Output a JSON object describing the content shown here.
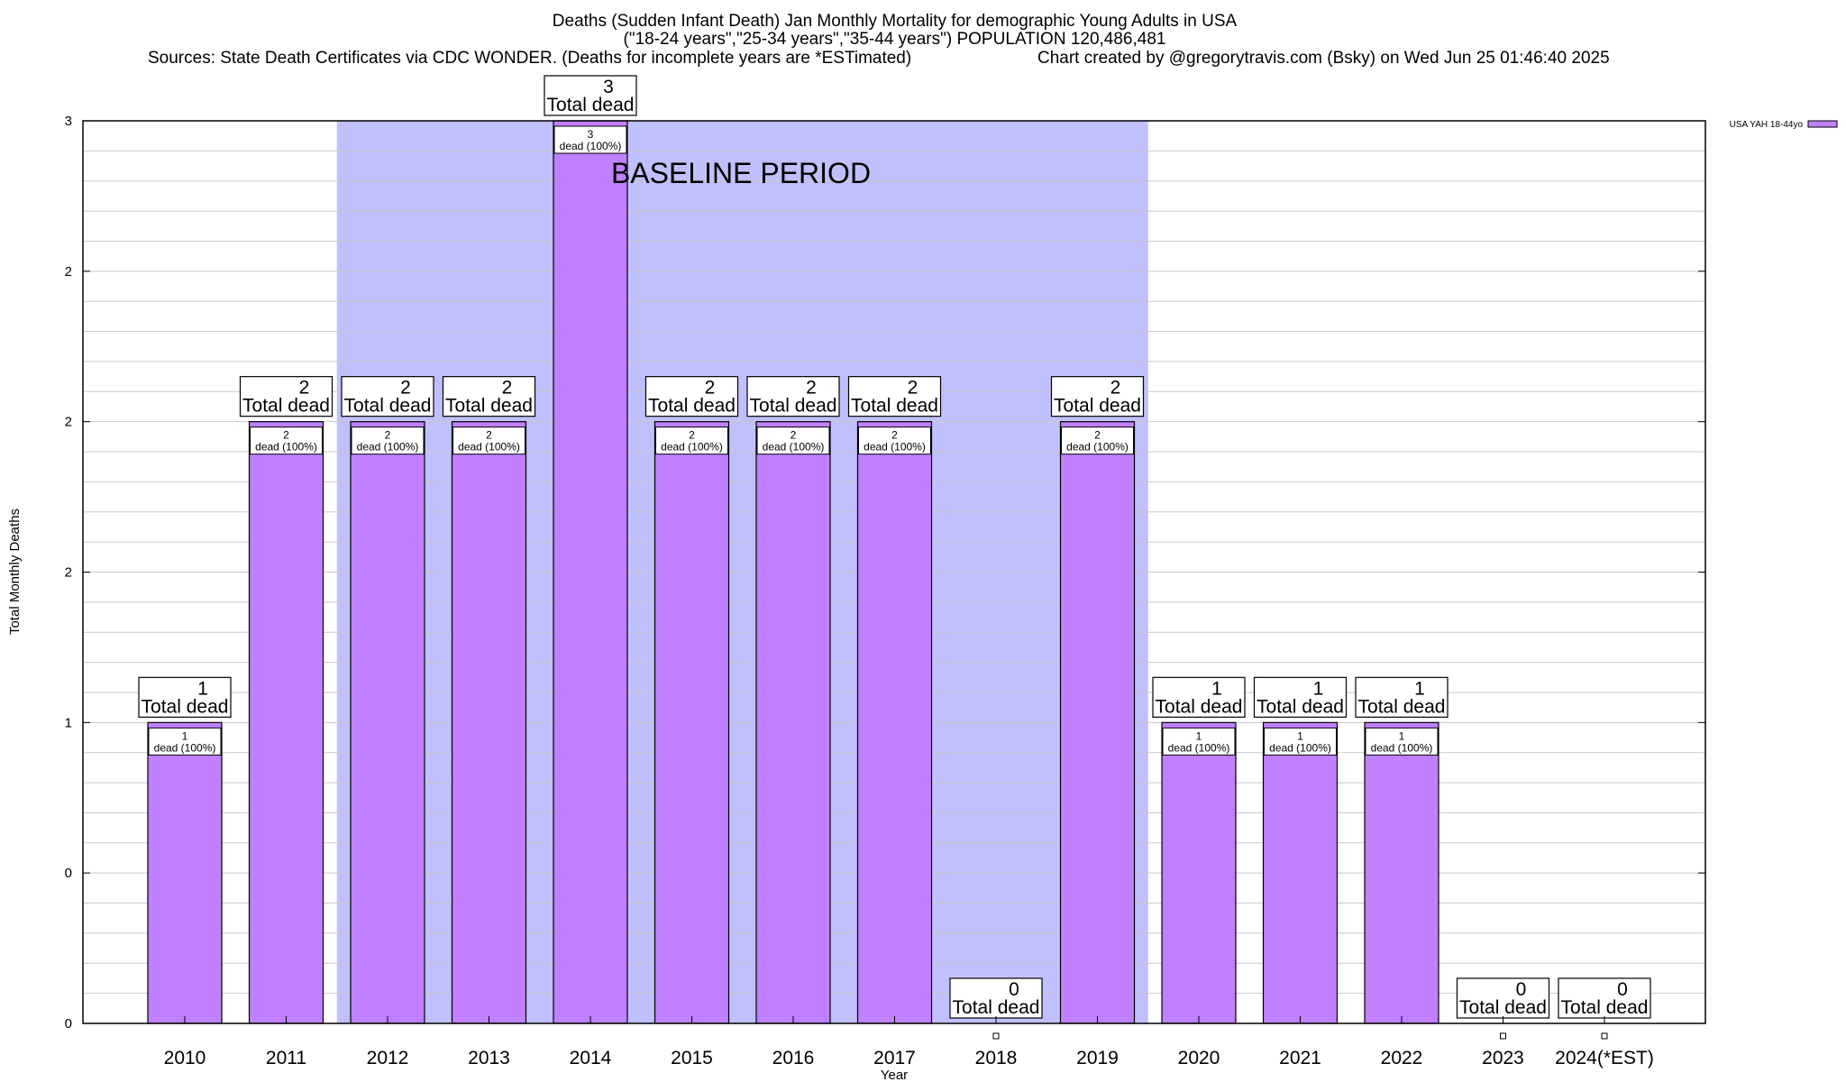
{
  "title_lines": [
    "Deaths (Sudden Infant Death) Jan Monthly Mortality for demographic Young Adults in USA",
    "(\"18-24 years\",\"25-34 years\",\"35-44 years\") POPULATION 120,486,481"
  ],
  "sources_text": "Sources: State Death Certificates via CDC WONDER. (Deaths for incomplete years are *ESTimated)",
  "credit_text": "Chart created by @gregorytravis.com (Bsky) on Wed Jun 25 01:46:40 2025",
  "baseline_label": "BASELINE PERIOD",
  "colors": {
    "bar": "#c080ff",
    "baseline_shade": "#c0c0ff",
    "grid": "#c8c8c8"
  },
  "chart_data": {
    "type": "bar",
    "title": "Deaths (Sudden Infant Death) Jan Monthly Mortality for demographic Young Adults in USA",
    "xlabel": "Year",
    "ylabel": "Total Monthly Deaths",
    "ylim": [
      0,
      3
    ],
    "y_tick_labels": [
      "0",
      "0",
      "1",
      "2",
      "2",
      "2",
      "3"
    ],
    "y_tick_values": [
      0,
      0.5,
      1,
      1.5,
      2,
      2.5,
      3
    ],
    "grid": true,
    "legend_position": "top-right",
    "categories": [
      "2010",
      "2011",
      "2012",
      "2013",
      "2014",
      "2015",
      "2016",
      "2017",
      "2018",
      "2019",
      "2020",
      "2021",
      "2022",
      "2023",
      "2024(*EST)"
    ],
    "baseline_range": [
      "2012",
      "2019"
    ],
    "series": [
      {
        "name": "USA YAH 18-44yo",
        "values": [
          1,
          2,
          2,
          2,
          3,
          2,
          2,
          2,
          0,
          2,
          1,
          1,
          1,
          0,
          0
        ],
        "total_labels": [
          "1",
          "2",
          "2",
          "2",
          "3",
          "2",
          "2",
          "2",
          "0",
          "2",
          "1",
          "1",
          "1",
          "0",
          "0"
        ],
        "inner_labels": [
          "1",
          "2",
          "2",
          "2",
          "3",
          "2",
          "2",
          "2",
          "",
          "2",
          "1",
          "1",
          "1",
          "",
          ""
        ]
      }
    ],
    "total_caption": "Total dead",
    "inner_caption": "dead (100%)"
  }
}
